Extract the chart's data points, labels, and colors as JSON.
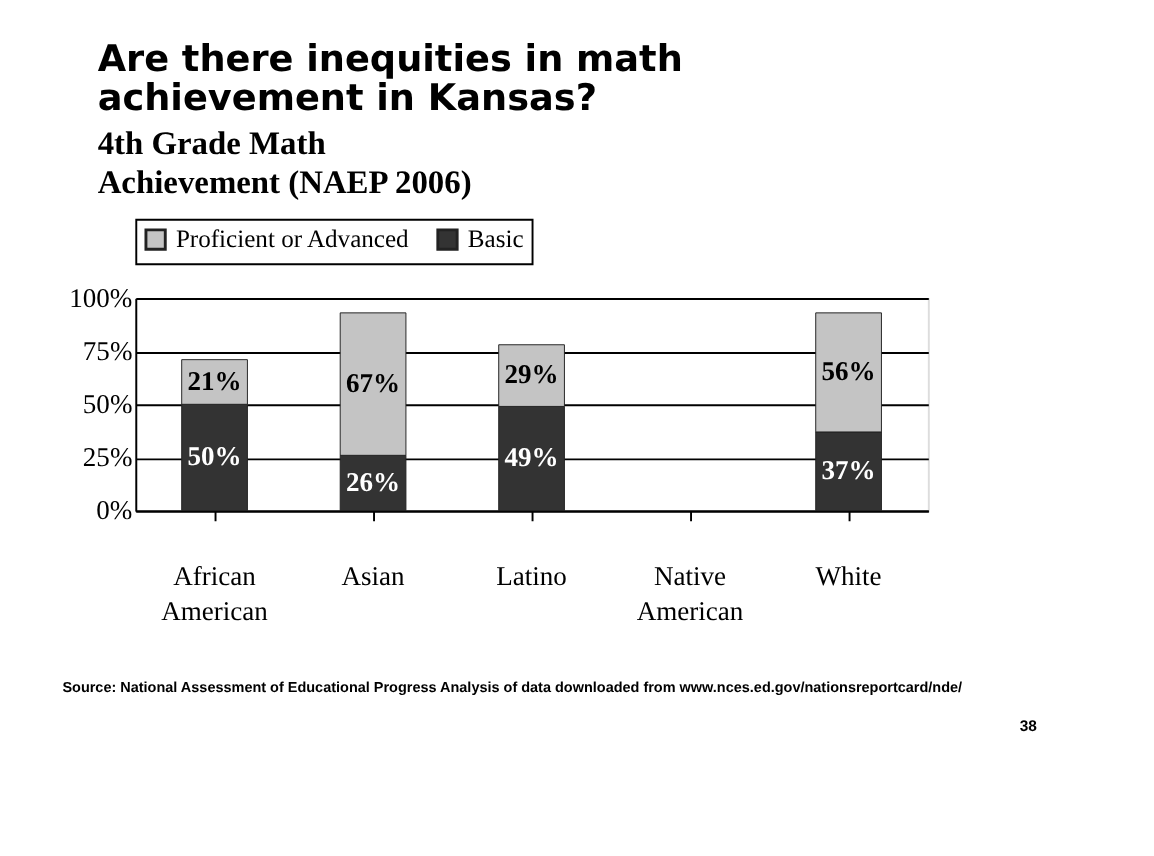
{
  "chart_data": {
    "type": "bar",
    "title": "Are there inequities in math achievement in Kansas?",
    "subtitle": "4th Grade Math Achievement (NAEP 2006)",
    "categories": [
      "African American",
      "Asian",
      "Latino",
      "Native American",
      "White"
    ],
    "stacked": true,
    "series": [
      {
        "name": "Basic",
        "color": "#333333",
        "values": [
          50,
          26,
          49,
          null,
          37
        ],
        "value_labels": [
          "50%",
          "26%",
          "49%",
          null,
          "37%"
        ]
      },
      {
        "name": "Proficient or Advanced",
        "color": "#c4c4c4",
        "values": [
          21,
          67,
          29,
          null,
          56
        ],
        "value_labels": [
          "21%",
          "67%",
          "29%",
          null,
          "56%"
        ]
      }
    ],
    "ylim": [
      0,
      100
    ],
    "yticks": [
      {
        "value": 0,
        "label": "0%"
      },
      {
        "value": 25,
        "label": "25%"
      },
      {
        "value": 50,
        "label": "50%"
      },
      {
        "value": 75,
        "label": "75%"
      },
      {
        "value": 100,
        "label": "100%"
      }
    ],
    "grid": "y",
    "legend": "top",
    "annotations": [
      "Source: National Assessment of Educational Progress  Analysis of data downloaded from www.nces.ed.gov/nationsreportcard/nde/",
      "38"
    ]
  }
}
